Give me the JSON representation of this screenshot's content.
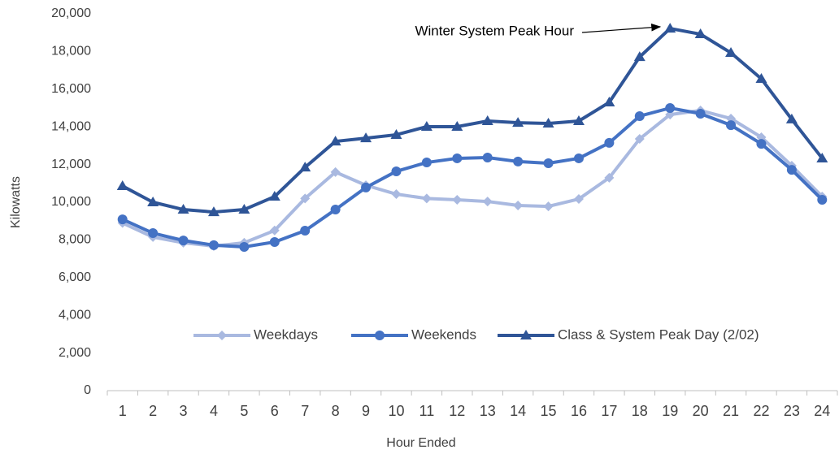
{
  "chart_data": {
    "type": "line",
    "x_label": "Hour Ended",
    "y_label": "Kilowatts",
    "annotation": "Winter System Peak Hour",
    "categories": [
      "1",
      "2",
      "3",
      "4",
      "5",
      "6",
      "7",
      "8",
      "9",
      "10",
      "11",
      "12",
      "13",
      "14",
      "15",
      "16",
      "17",
      "18",
      "19",
      "20",
      "21",
      "22",
      "23",
      "24"
    ],
    "series": [
      {
        "name": "Weekdays",
        "color": "#a9b9e0",
        "marker": "diamond",
        "values": [
          8900,
          8150,
          7850,
          7670,
          7850,
          8500,
          10200,
          11600,
          10900,
          10430,
          10200,
          10130,
          10040,
          9830,
          9780,
          10170,
          11300,
          13360,
          14650,
          14870,
          14440,
          13450,
          11940,
          10300
        ]
      },
      {
        "name": "Weekends",
        "color": "#4472c4",
        "marker": "circle",
        "values": [
          9090,
          8360,
          7970,
          7720,
          7630,
          7890,
          8490,
          9610,
          10780,
          11640,
          12110,
          12330,
          12370,
          12160,
          12070,
          12330,
          13150,
          14570,
          15000,
          14700,
          14090,
          13100,
          11720,
          10130
        ]
      },
      {
        "name": "Class & System Peak Day (2/02)",
        "color": "#2f5597",
        "marker": "triangle",
        "values": [
          10860,
          10000,
          9610,
          9480,
          9610,
          10300,
          11850,
          13230,
          13400,
          13580,
          14010,
          14010,
          14310,
          14220,
          14180,
          14310,
          15300,
          17710,
          19220,
          18920,
          17930,
          16550,
          14400,
          12330
        ]
      }
    ],
    "ylim": [
      0,
      20000
    ],
    "yticks": [
      0,
      {
        "value": 2000,
        "label": "2,000"
      },
      {
        "value": 4000,
        "label": "4,000"
      },
      {
        "value": 6000,
        "label": "6,000"
      },
      {
        "value": 8000,
        "label": "8,000"
      },
      {
        "value": 10000,
        "label": "10,000"
      },
      {
        "value": 12000,
        "label": "12,000"
      },
      {
        "value": 14000,
        "label": "14,000"
      },
      {
        "value": 16000,
        "label": "16,000"
      },
      {
        "value": 18000,
        "label": "18,000"
      },
      {
        "value": 20000,
        "label": "20,000"
      }
    ],
    "grid": false,
    "legend": "bottom"
  }
}
